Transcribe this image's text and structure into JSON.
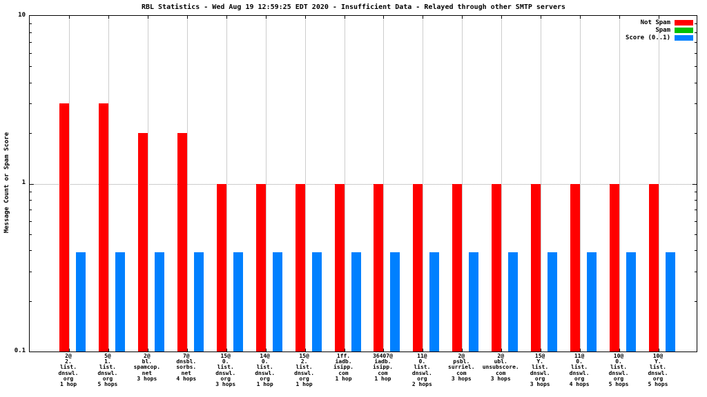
{
  "chart_data": {
    "type": "bar",
    "title": "RBL Statistics - Wed Aug 19 12:59:25 EDT 2020 - Insufficient Data - Relayed through other SMTP servers",
    "ylabel": "Message Count or Spam Score",
    "xlabel": "",
    "yscale": "log",
    "ylim": [
      0.1,
      10
    ],
    "yticks": [
      {
        "label": "10",
        "value": 10
      },
      {
        "label": "1",
        "value": 1
      },
      {
        "label": "0.1",
        "value": 0.1
      }
    ],
    "grid": {
      "h_lines_at_values": [
        1
      ],
      "v_lines": "at-each-category",
      "style": "dotted",
      "color": "#999999"
    },
    "legend": {
      "position": "top-right",
      "entries": [
        {
          "label": "Not Spam",
          "color": "#ff0000"
        },
        {
          "label": "Spam",
          "color": "#00c000"
        },
        {
          "label": "Score (0..1)",
          "color": "#0080ff"
        }
      ]
    },
    "categories": [
      [
        "2@",
        "2.",
        "list.",
        "dnswl.",
        "org",
        "1 hop"
      ],
      [
        "5@",
        "1.",
        "list.",
        "dnswl.",
        "org",
        "5 hops"
      ],
      [
        "2@",
        "bl.",
        "spamcop.",
        "net",
        "3 hops"
      ],
      [
        "7@",
        "dnsbl.",
        "sorbs.",
        "net",
        "4 hops"
      ],
      [
        "15@",
        "0.",
        "list.",
        "dnswl.",
        "org",
        "3 hops"
      ],
      [
        "14@",
        "0.",
        "list.",
        "dnswl.",
        "org",
        "1 hop"
      ],
      [
        "15@",
        "2.",
        "list.",
        "dnswl.",
        "org",
        "1 hop"
      ],
      [
        "1ff.",
        "iadb.",
        "isipp.",
        "com",
        "1 hop"
      ],
      [
        "36407@",
        "iadb.",
        "isipp.",
        "com",
        "1 hop"
      ],
      [
        "11@",
        "0.",
        "list.",
        "dnswl.",
        "org",
        "2 hops"
      ],
      [
        "2@",
        "psbl.",
        "surriel.",
        "com",
        "3 hops"
      ],
      [
        "2@",
        "ubl.",
        "unsubscore.",
        "com",
        "3 hops"
      ],
      [
        "15@",
        "Y.",
        "list.",
        "dnswl.",
        "org",
        "3 hops"
      ],
      [
        "11@",
        "0.",
        "list.",
        "dnswl.",
        "org",
        "4 hops"
      ],
      [
        "10@",
        "0.",
        "list.",
        "dnswl.",
        "org",
        "5 hops"
      ],
      [
        "10@",
        "Y.",
        "list.",
        "dnswl.",
        "org",
        "5 hops"
      ]
    ],
    "series": [
      {
        "name": "Not Spam",
        "color": "#ff0000",
        "values": [
          3,
          3,
          2,
          2,
          1,
          1,
          1,
          1,
          1,
          1,
          1,
          1,
          1,
          1,
          1,
          1
        ]
      },
      {
        "name": "Spam",
        "color": "#00c000",
        "values": [
          0,
          0,
          0,
          0,
          0,
          0,
          0,
          0,
          0,
          0,
          0,
          0,
          0,
          0,
          0,
          0
        ]
      },
      {
        "name": "Score (0..1)",
        "color": "#0080ff",
        "values": [
          0.39,
          0.39,
          0.39,
          0.39,
          0.39,
          0.39,
          0.39,
          0.39,
          0.39,
          0.39,
          0.39,
          0.39,
          0.39,
          0.39,
          0.39,
          0.39
        ]
      }
    ]
  }
}
